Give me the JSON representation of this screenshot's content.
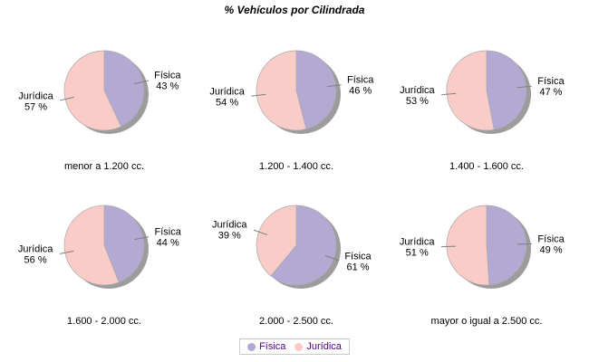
{
  "title": "% Vehículos por Cilindrada",
  "legend": {
    "items": [
      {
        "label": "Física",
        "color": "#B3A9D2"
      },
      {
        "label": "Jurídica",
        "color": "#F9CCC8"
      }
    ]
  },
  "colors": {
    "fisica": "#B3A9D2",
    "juridica": "#F9CCC8",
    "pie_outline": "#AAAAAA",
    "shadow": "#9C9C9C",
    "leader_line": "#808080",
    "legend_text": "#4B0082",
    "legend_border": "#C9C9D4",
    "label_text": "#000000",
    "background": "#FFFFFF"
  },
  "chart_data": [
    {
      "type": "pie",
      "title": "menor a 1.200 cc.",
      "labels": [
        "Física",
        "Jurídica"
      ],
      "values": [
        43,
        57
      ],
      "unit": "%"
    },
    {
      "type": "pie",
      "title": "1.200 - 1.400 cc.",
      "labels": [
        "Física",
        "Jurídica"
      ],
      "values": [
        46,
        54
      ],
      "unit": "%"
    },
    {
      "type": "pie",
      "title": "1.400 - 1.600 cc.",
      "labels": [
        "Física",
        "Jurídica"
      ],
      "values": [
        47,
        53
      ],
      "unit": "%"
    },
    {
      "type": "pie",
      "title": "1.600 - 2.000 cc.",
      "labels": [
        "Física",
        "Jurídica"
      ],
      "values": [
        44,
        56
      ],
      "unit": "%"
    },
    {
      "type": "pie",
      "title": "2.000 - 2.500 cc.",
      "labels": [
        "Física",
        "Jurídica"
      ],
      "values": [
        61,
        39
      ],
      "unit": "%"
    },
    {
      "type": "pie",
      "title": "mayor o igual a 2.500 cc.",
      "labels": [
        "Física",
        "Jurídica"
      ],
      "values": [
        49,
        51
      ],
      "unit": "%"
    }
  ]
}
